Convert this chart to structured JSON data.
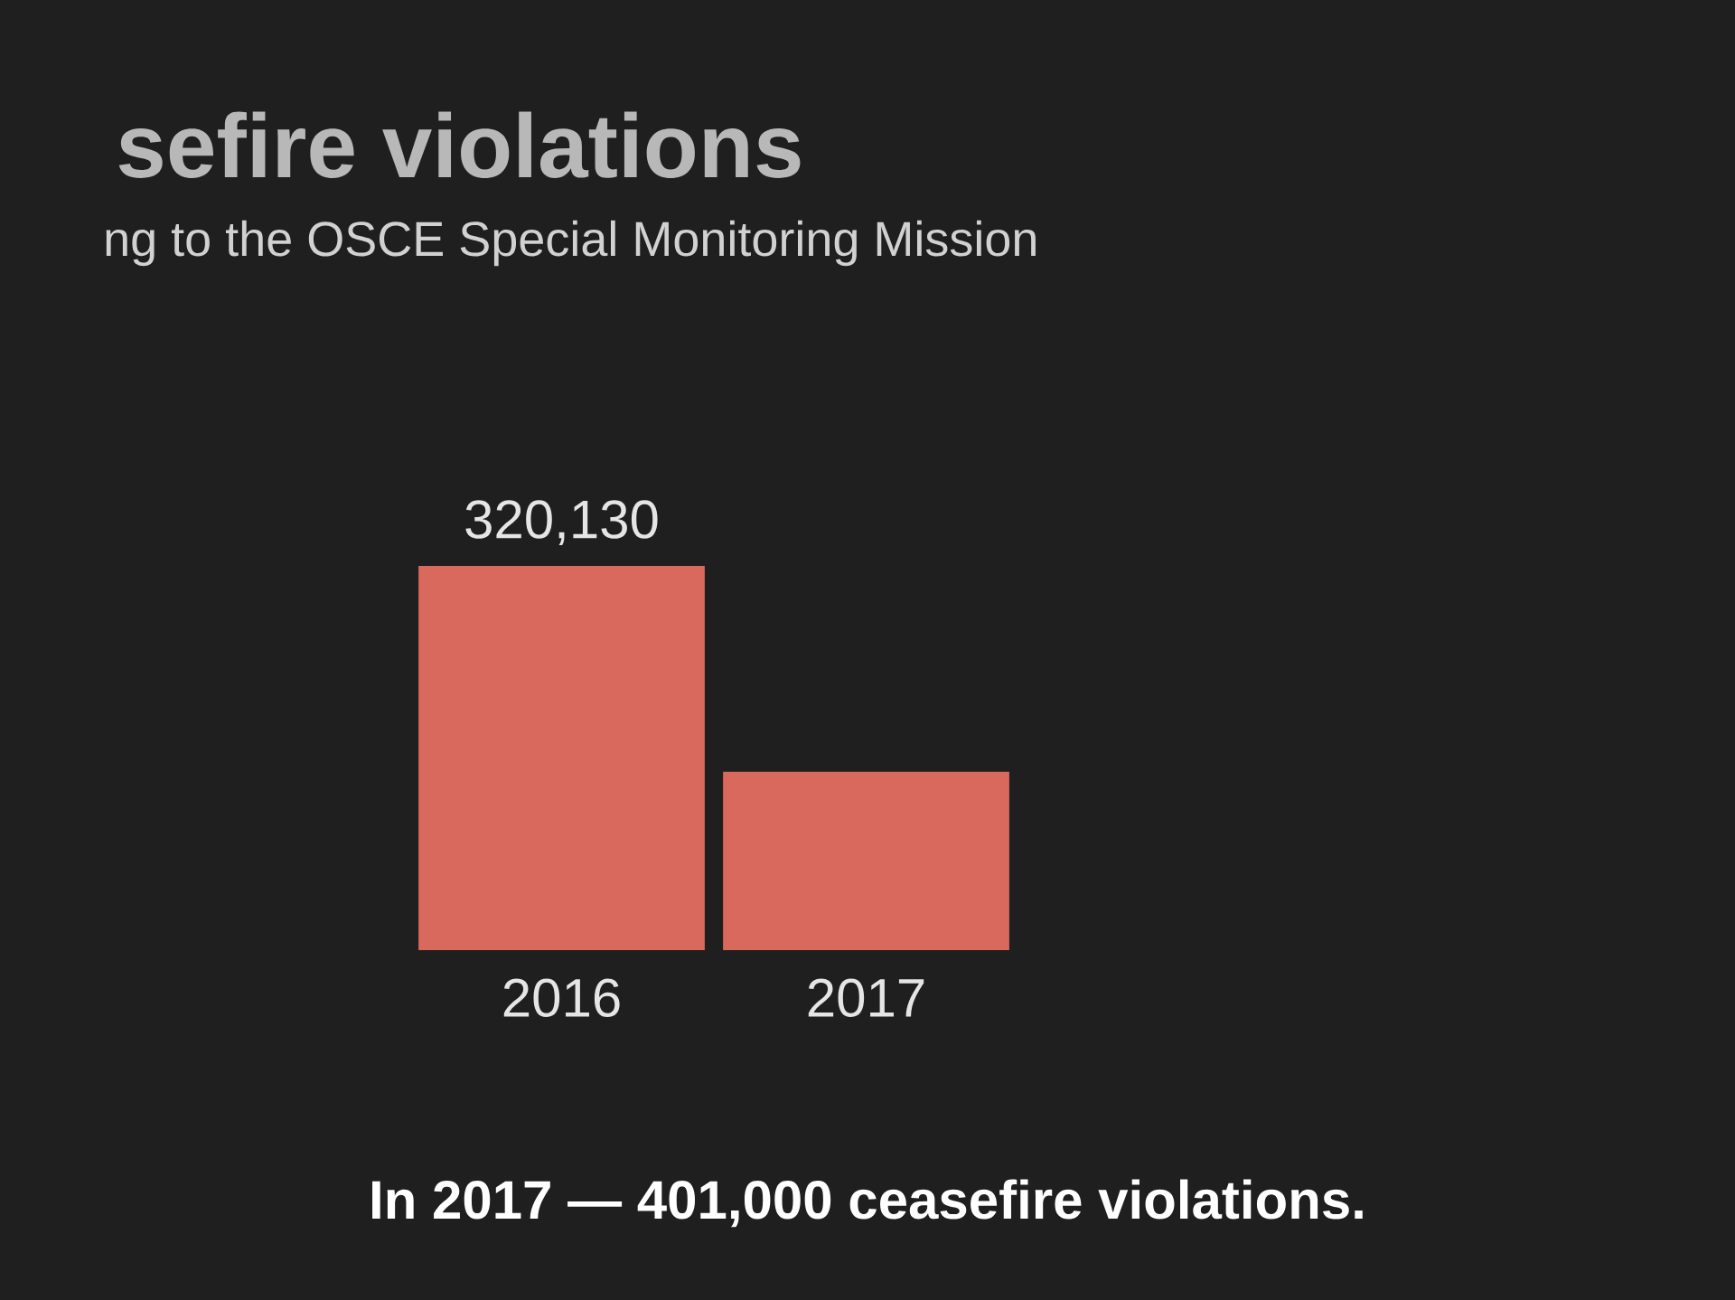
{
  "chart_data": {
    "type": "bar",
    "title": "sefire violations",
    "subtitle": "ng to the OSCE Special Monitoring Mission",
    "categories": [
      "2016",
      "2017"
    ],
    "values": [
      320130,
      148500
    ],
    "value_labels": [
      "320,130",
      null
    ],
    "color": "#d9695c",
    "annotations": [
      "In 2017 — 401,000 ceasefire violations."
    ]
  }
}
